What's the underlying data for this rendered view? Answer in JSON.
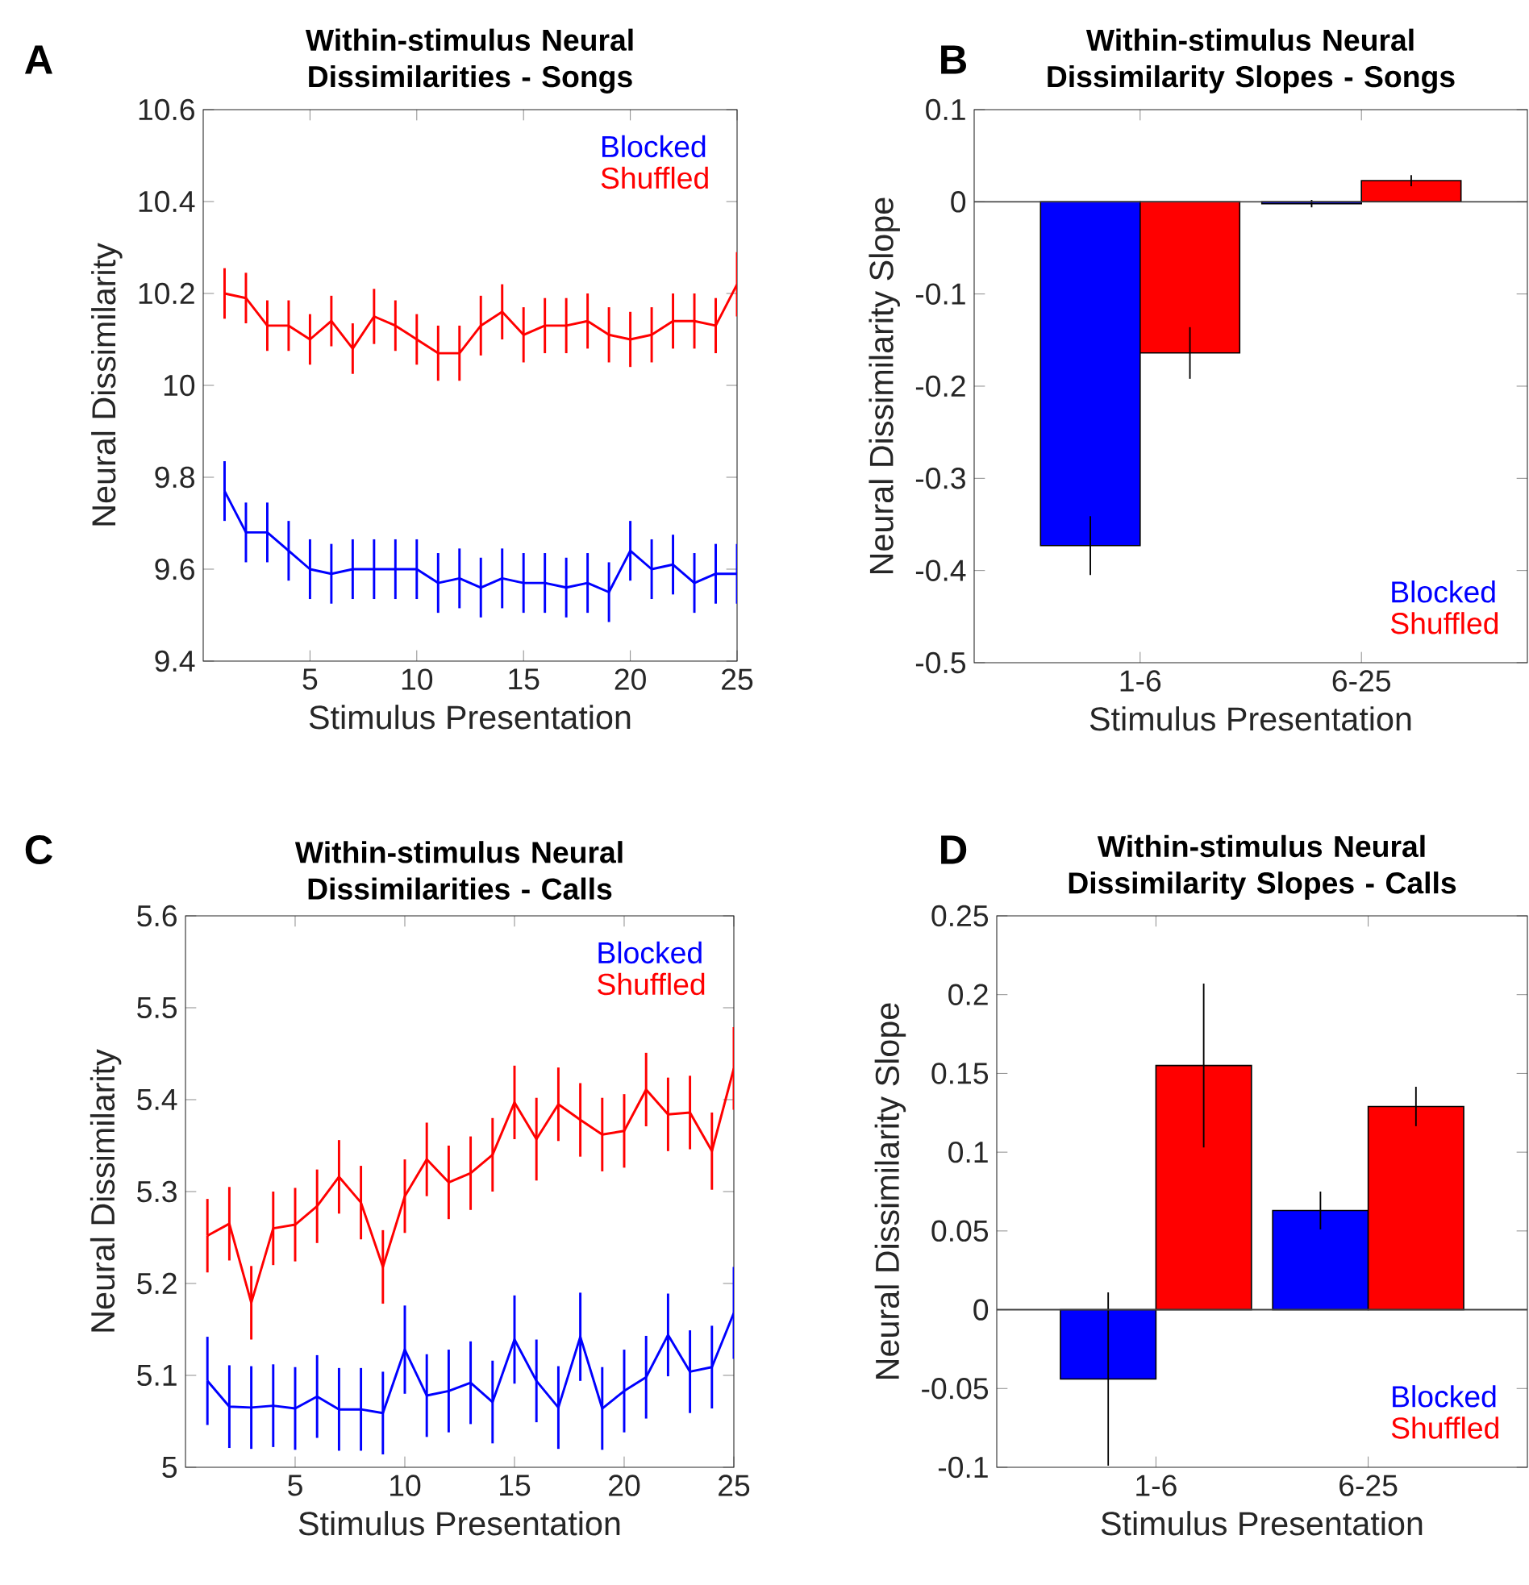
{
  "chart_data": [
    {
      "type": "line",
      "title": "Within-stimulus Neural Dissimilarities - Songs",
      "xlabel": "Stimulus Presentation",
      "ylabel": "Neural Dissimilarity",
      "annotations": [
        "A"
      ],
      "legend": "top right",
      "marker": "none",
      "x": [
        1,
        2,
        3,
        4,
        5,
        6,
        7,
        8,
        9,
        10,
        11,
        12,
        13,
        14,
        15,
        16,
        17,
        18,
        19,
        20,
        21,
        22,
        23,
        24,
        25
      ],
      "xlim": [
        0,
        25
      ],
      "xticks": [
        5,
        10,
        15,
        20,
        25
      ],
      "ylim": [
        9.4,
        10.6
      ],
      "yticks": [
        9.4,
        9.6,
        9.8,
        10,
        10.2,
        10.4,
        10.6
      ],
      "series": [
        {
          "name": "Blocked",
          "color": "#0000ff",
          "values": [
            9.77,
            9.68,
            9.68,
            9.64,
            9.6,
            9.59,
            9.6,
            9.6,
            9.6,
            9.6,
            9.57,
            9.58,
            9.56,
            9.58,
            9.57,
            9.57,
            9.56,
            9.57,
            9.55,
            9.64,
            9.6,
            9.61,
            9.57,
            9.59,
            9.59
          ],
          "errors": [
            0.065,
            0.065,
            0.065,
            0.065,
            0.065,
            0.065,
            0.065,
            0.065,
            0.065,
            0.065,
            0.065,
            0.065,
            0.065,
            0.065,
            0.065,
            0.065,
            0.065,
            0.065,
            0.065,
            0.065,
            0.065,
            0.065,
            0.065,
            0.065,
            0.065
          ]
        },
        {
          "name": "Shuffled",
          "color": "#ff0000",
          "values": [
            10.2,
            10.19,
            10.13,
            10.13,
            10.1,
            10.14,
            10.08,
            10.15,
            10.13,
            10.1,
            10.07,
            10.07,
            10.13,
            10.16,
            10.11,
            10.13,
            10.13,
            10.14,
            10.11,
            10.1,
            10.11,
            10.14,
            10.14,
            10.13,
            10.22
          ],
          "errors": [
            0.055,
            0.055,
            0.055,
            0.055,
            0.055,
            0.055,
            0.055,
            0.06,
            0.055,
            0.055,
            0.06,
            0.06,
            0.065,
            0.06,
            0.06,
            0.06,
            0.06,
            0.06,
            0.06,
            0.06,
            0.06,
            0.06,
            0.06,
            0.06,
            0.07
          ]
        }
      ]
    },
    {
      "type": "bar",
      "title": "Within-stimulus Neural Dissimilarity Slopes - Songs",
      "xlabel": "Stimulus Presentation",
      "ylabel": "Neural Dissimilarity Slope",
      "annotations": [
        "B"
      ],
      "legend": "bottom right",
      "categories": [
        "1-6",
        "6-25"
      ],
      "ylim": [
        -0.5,
        0.1
      ],
      "yticks": [
        -0.5,
        -0.4,
        -0.3,
        -0.2,
        -0.1,
        0,
        0.1
      ],
      "ref_lines": [
        {
          "axis": "y",
          "value": 0,
          "color": "#404040"
        }
      ],
      "series": [
        {
          "name": "Blocked",
          "color": "#0000ff",
          "values": [
            -0.373,
            -0.002
          ],
          "errors": [
            0.032,
            0.004
          ]
        },
        {
          "name": "Shuffled",
          "color": "#ff0000",
          "values": [
            -0.164,
            0.023
          ],
          "errors": [
            0.028,
            0.006
          ]
        }
      ]
    },
    {
      "type": "line",
      "title": "Within-stimulus Neural Dissimilarities - Calls",
      "xlabel": "Stimulus Presentation",
      "ylabel": "Neural Dissimilarity",
      "annotations": [
        "C"
      ],
      "legend": "top right",
      "marker": "none",
      "x": [
        1,
        2,
        3,
        4,
        5,
        6,
        7,
        8,
        9,
        10,
        11,
        12,
        13,
        14,
        15,
        16,
        17,
        18,
        19,
        20,
        21,
        22,
        23,
        24,
        25
      ],
      "xlim": [
        0,
        25
      ],
      "xticks": [
        5,
        10,
        15,
        20,
        25
      ],
      "ylim": [
        5,
        5.6
      ],
      "yticks": [
        5,
        5.1,
        5.2,
        5.3,
        5.4,
        5.5,
        5.6
      ],
      "series": [
        {
          "name": "Blocked",
          "color": "#0000ff",
          "values": [
            5.094,
            5.066,
            5.065,
            5.067,
            5.064,
            5.077,
            5.063,
            5.063,
            5.059,
            5.128,
            5.078,
            5.083,
            5.092,
            5.071,
            5.139,
            5.094,
            5.065,
            5.142,
            5.064,
            5.083,
            5.098,
            5.144,
            5.104,
            5.109,
            5.168
          ],
          "errors": [
            0.048,
            0.045,
            0.045,
            0.045,
            0.045,
            0.045,
            0.045,
            0.045,
            0.045,
            0.048,
            0.045,
            0.045,
            0.045,
            0.045,
            0.048,
            0.045,
            0.045,
            0.048,
            0.045,
            0.045,
            0.045,
            0.045,
            0.045,
            0.045,
            0.05
          ]
        },
        {
          "name": "Shuffled",
          "color": "#ff0000",
          "values": [
            5.252,
            5.265,
            5.179,
            5.26,
            5.264,
            5.284,
            5.316,
            5.288,
            5.218,
            5.295,
            5.335,
            5.31,
            5.32,
            5.34,
            5.397,
            5.357,
            5.395,
            5.378,
            5.362,
            5.366,
            5.411,
            5.384,
            5.386,
            5.344,
            5.434
          ],
          "errors": [
            0.04,
            0.04,
            0.04,
            0.04,
            0.04,
            0.04,
            0.04,
            0.04,
            0.04,
            0.04,
            0.04,
            0.04,
            0.04,
            0.04,
            0.04,
            0.045,
            0.04,
            0.04,
            0.04,
            0.04,
            0.04,
            0.04,
            0.04,
            0.042,
            0.045
          ]
        }
      ]
    },
    {
      "type": "bar",
      "title": "Within-stimulus Neural Dissimilarity Slopes - Calls",
      "xlabel": "Stimulus Presentation",
      "ylabel": "Neural Dissimilarity Slope",
      "annotations": [
        "D"
      ],
      "legend": "bottom right",
      "categories": [
        "1-6",
        "6-25"
      ],
      "ylim": [
        -0.1,
        0.25
      ],
      "yticks": [
        -0.1,
        -0.05,
        0,
        0.05,
        0.1,
        0.15,
        0.2,
        0.25
      ],
      "ref_lines": [
        {
          "axis": "y",
          "value": 0,
          "color": "#404040"
        }
      ],
      "series": [
        {
          "name": "Blocked",
          "color": "#0000ff",
          "values": [
            -0.044,
            0.063
          ],
          "errors": [
            0.055,
            0.012
          ]
        },
        {
          "name": "Shuffled",
          "color": "#ff0000",
          "values": [
            0.155,
            0.129
          ],
          "errors": [
            0.052,
            0.0125
          ]
        }
      ]
    }
  ]
}
